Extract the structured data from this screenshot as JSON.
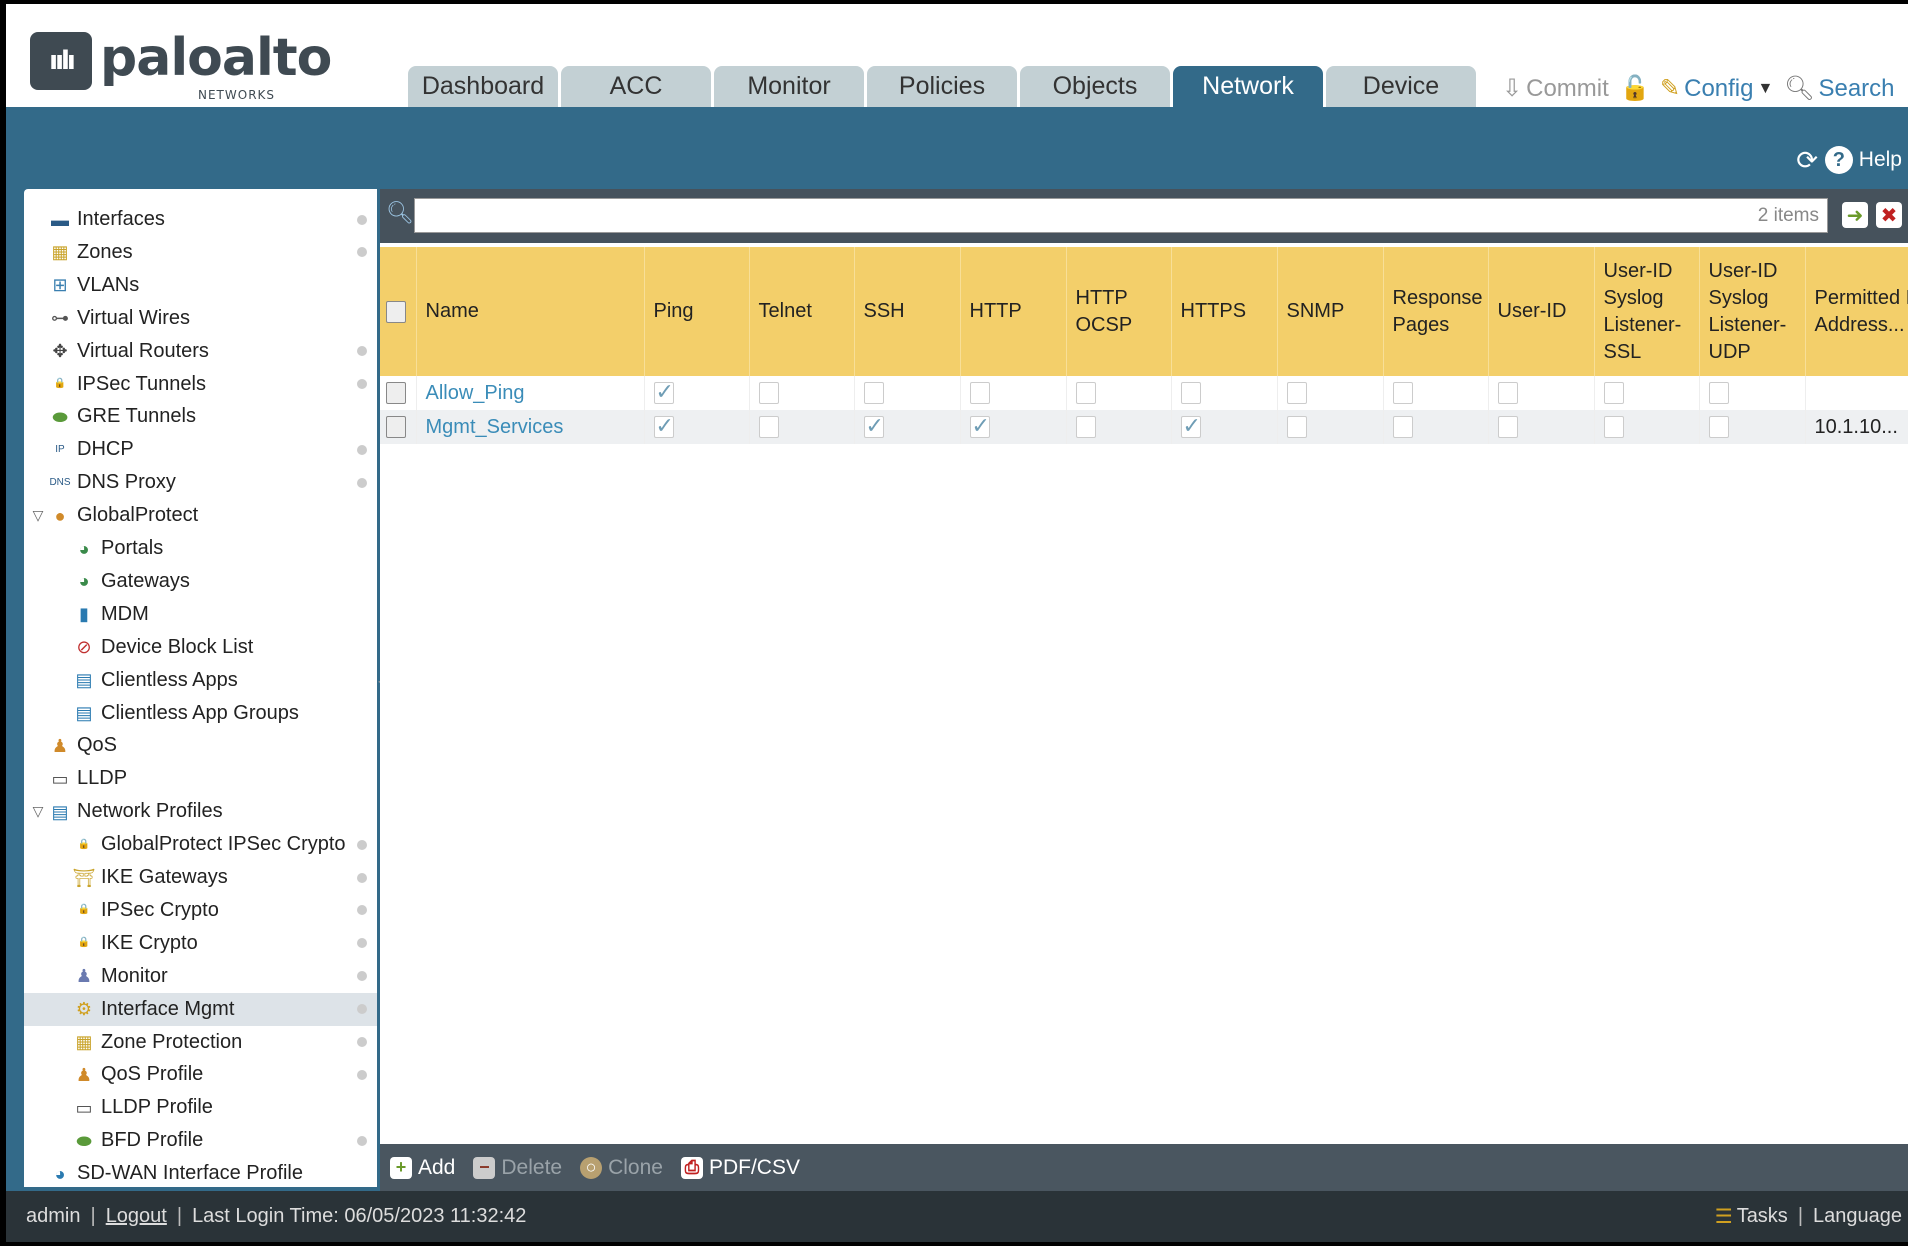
{
  "brand": {
    "name": "paloalto",
    "sub": "NETWORKS"
  },
  "tabs": [
    "Dashboard",
    "ACC",
    "Monitor",
    "Policies",
    "Objects",
    "Network",
    "Device"
  ],
  "active_tab": "Network",
  "toplinks": {
    "commit": "Commit",
    "config": "Config",
    "search": "Search",
    "help": "Help"
  },
  "sidebar": {
    "items": [
      {
        "label": "Interfaces",
        "level": 0,
        "icon": "interfaces-icon",
        "glyph": "▬",
        "color": "#2a5a86",
        "dot": true
      },
      {
        "label": "Zones",
        "level": 0,
        "icon": "zones-icon",
        "glyph": "▦",
        "color": "#c9a32a",
        "dot": true
      },
      {
        "label": "VLANs",
        "level": 0,
        "icon": "vlans-icon",
        "glyph": "⊞",
        "color": "#3a7fb0",
        "dot": false
      },
      {
        "label": "Virtual Wires",
        "level": 0,
        "icon": "virtual-wires-icon",
        "glyph": "⊶",
        "color": "#555",
        "dot": false
      },
      {
        "label": "Virtual Routers",
        "level": 0,
        "icon": "virtual-routers-icon",
        "glyph": "✥",
        "color": "#444",
        "dot": true
      },
      {
        "label": "IPSec Tunnels",
        "level": 0,
        "icon": "ipsec-tunnels-icon",
        "glyph": "🔒",
        "color": "#c9a32a",
        "dot": true
      },
      {
        "label": "GRE Tunnels",
        "level": 0,
        "icon": "gre-tunnels-icon",
        "glyph": "⬬",
        "color": "#5a9a3a",
        "dot": false
      },
      {
        "label": "DHCP",
        "level": 0,
        "icon": "dhcp-icon",
        "glyph": "IP",
        "color": "#2a5a86",
        "dot": true
      },
      {
        "label": "DNS Proxy",
        "level": 0,
        "icon": "dns-proxy-icon",
        "glyph": "DNS",
        "color": "#2a5a86",
        "dot": true
      },
      {
        "label": "GlobalProtect",
        "level": 0,
        "icon": "globalprotect-icon",
        "glyph": "●",
        "color": "#d08a2a",
        "dot": false,
        "expanded": true
      },
      {
        "label": "Portals",
        "level": 1,
        "icon": "portals-icon",
        "glyph": "◕",
        "color": "#3a8a4a",
        "dot": false
      },
      {
        "label": "Gateways",
        "level": 1,
        "icon": "gateways-icon",
        "glyph": "◕",
        "color": "#3a8a4a",
        "dot": false
      },
      {
        "label": "MDM",
        "level": 1,
        "icon": "mdm-icon",
        "glyph": "▮",
        "color": "#2a7ab0",
        "dot": false
      },
      {
        "label": "Device Block List",
        "level": 1,
        "icon": "device-block-list-icon",
        "glyph": "⊘",
        "color": "#c03030",
        "dot": false
      },
      {
        "label": "Clientless Apps",
        "level": 1,
        "icon": "clientless-apps-icon",
        "glyph": "▤",
        "color": "#2a7ab0",
        "dot": false
      },
      {
        "label": "Clientless App Groups",
        "level": 1,
        "icon": "clientless-app-groups-icon",
        "glyph": "▤",
        "color": "#2a7ab0",
        "dot": false
      },
      {
        "label": "QoS",
        "level": 0,
        "icon": "qos-icon",
        "glyph": "♟",
        "color": "#d08a2a",
        "dot": false
      },
      {
        "label": "LLDP",
        "level": 0,
        "icon": "lldp-icon",
        "glyph": "▭",
        "color": "#555",
        "dot": false
      },
      {
        "label": "Network Profiles",
        "level": 0,
        "icon": "network-profiles-icon",
        "glyph": "▤",
        "color": "#2a7ab0",
        "dot": false,
        "expanded": true
      },
      {
        "label": "GlobalProtect IPSec Crypto",
        "level": 1,
        "icon": "lock-icon",
        "glyph": "🔒",
        "color": "#c9a32a",
        "dot": true
      },
      {
        "label": "IKE Gateways",
        "level": 1,
        "icon": "ike-gateways-icon",
        "glyph": "⛩",
        "color": "#c9a32a",
        "dot": true
      },
      {
        "label": "IPSec Crypto",
        "level": 1,
        "icon": "lock-icon",
        "glyph": "🔒",
        "color": "#c9a32a",
        "dot": true
      },
      {
        "label": "IKE Crypto",
        "level": 1,
        "icon": "lock-icon",
        "glyph": "🔒",
        "color": "#c9a32a",
        "dot": true
      },
      {
        "label": "Monitor",
        "level": 1,
        "icon": "monitor-icon",
        "glyph": "♟",
        "color": "#6a7ab0",
        "dot": true
      },
      {
        "label": "Interface Mgmt",
        "level": 1,
        "icon": "interface-mgmt-icon",
        "glyph": "⚙",
        "color": "#d0a020",
        "dot": true,
        "selected": true
      },
      {
        "label": "Zone Protection",
        "level": 1,
        "icon": "zone-protection-icon",
        "glyph": "▦",
        "color": "#c9a32a",
        "dot": true
      },
      {
        "label": "QoS Profile",
        "level": 1,
        "icon": "qos-profile-icon",
        "glyph": "♟",
        "color": "#d08a2a",
        "dot": true
      },
      {
        "label": "LLDP Profile",
        "level": 1,
        "icon": "lldp-profile-icon",
        "glyph": "▭",
        "color": "#555",
        "dot": false
      },
      {
        "label": "BFD Profile",
        "level": 1,
        "icon": "bfd-profile-icon",
        "glyph": "⬬",
        "color": "#5a9a3a",
        "dot": true
      },
      {
        "label": "SD-WAN Interface Profile",
        "level": 0,
        "icon": "sdwan-icon",
        "glyph": "◕",
        "color": "#2a7ab0",
        "dot": false
      }
    ]
  },
  "search": {
    "value": "",
    "count": "2 items"
  },
  "table": {
    "columns": [
      "Name",
      "Ping",
      "Telnet",
      "SSH",
      "HTTP",
      "HTTP OCSP",
      "HTTPS",
      "SNMP",
      "Response Pages",
      "User-ID",
      "User-ID Syslog Listener-SSL",
      "User-ID Syslog Listener-UDP",
      "Permitted IP Address..."
    ],
    "rows": [
      {
        "name": "Allow_Ping",
        "checks": [
          true,
          false,
          false,
          false,
          false,
          false,
          false,
          false,
          false,
          false,
          false
        ],
        "permitted": ""
      },
      {
        "name": "Mgmt_Services",
        "checks": [
          true,
          false,
          true,
          true,
          false,
          true,
          false,
          false,
          false,
          false,
          false
        ],
        "permitted": "10.1.10..."
      }
    ]
  },
  "toolbar": {
    "add": "Add",
    "delete": "Delete",
    "clone": "Clone",
    "pdf": "PDF/CSV"
  },
  "footer": {
    "user": "admin",
    "logout": "Logout",
    "last_login": "Last Login Time: 06/05/2023 11:32:42",
    "tasks": "Tasks",
    "language": "Language"
  }
}
